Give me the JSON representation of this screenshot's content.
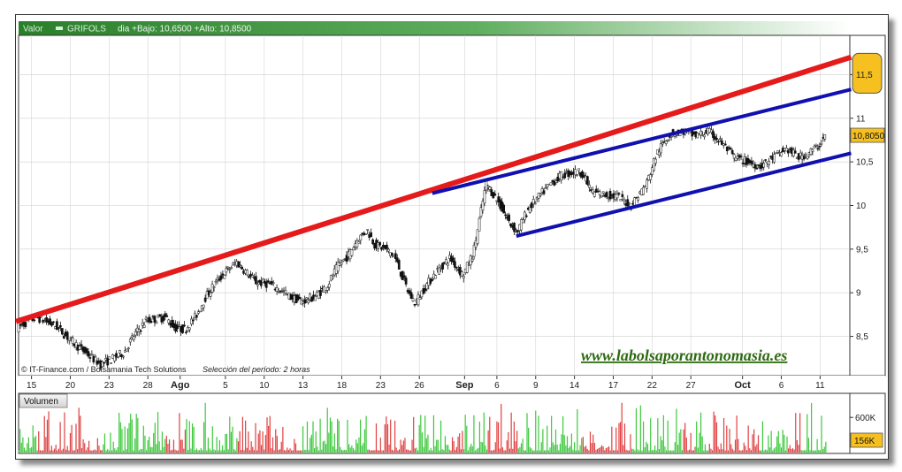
{
  "header": {
    "valor_label": "Valor",
    "ticker": "GRIFOLS",
    "quote_text": "dia +Bajo: 10,6500 +Alto: 10,8500"
  },
  "footer": {
    "source": "© IT-Finance.com / Bolsamania Tech Solutions",
    "period": "Selección del período: 2 horas",
    "website": "www.labolsaporantonomasia.es"
  },
  "volume_panel": {
    "label": "Volumen"
  },
  "last_price_badge": "10,8050",
  "volume_badge": "156K",
  "colors": {
    "header_bar": "#2e7a2e",
    "trendline_red": "#e51a1a",
    "channel_blue": "#1010b0",
    "candle_up": "#ffffff",
    "candle_down": "#111111",
    "vol_up": "#3cc83c",
    "vol_down": "#e04040",
    "badge_fill": "#f5c020",
    "website_text": "#2e6a10"
  },
  "chart_data": [
    {
      "type": "candlestick",
      "ylim": [
        8.05,
        11.95
      ],
      "y_ticks": [
        8.5,
        9,
        9.5,
        10,
        10.5,
        11,
        11.5
      ],
      "y_tick_labels": [
        "8,5",
        "9",
        "9,5",
        "10",
        "10,5",
        "11",
        "11,5"
      ],
      "x_ticks": [
        {
          "label": "15",
          "pos": 1.0,
          "month": false
        },
        {
          "label": "20",
          "pos": 4.0,
          "month": false
        },
        {
          "label": "23",
          "pos": 7.0,
          "month": false
        },
        {
          "label": "28",
          "pos": 10.0,
          "month": false
        },
        {
          "label": "Ago",
          "pos": 12.5,
          "month": true
        },
        {
          "label": "5",
          "pos": 16.0,
          "month": false
        },
        {
          "label": "10",
          "pos": 19.0,
          "month": false
        },
        {
          "label": "13",
          "pos": 22.0,
          "month": false
        },
        {
          "label": "18",
          "pos": 25.0,
          "month": false
        },
        {
          "label": "23",
          "pos": 28.0,
          "month": false
        },
        {
          "label": "26",
          "pos": 31.0,
          "month": false
        },
        {
          "label": "Sep",
          "pos": 34.5,
          "month": true
        },
        {
          "label": "6",
          "pos": 37.0,
          "month": false
        },
        {
          "label": "9",
          "pos": 40.0,
          "month": false
        },
        {
          "label": "14",
          "pos": 43.0,
          "month": false
        },
        {
          "label": "17",
          "pos": 46.0,
          "month": false
        },
        {
          "label": "22",
          "pos": 49.0,
          "month": false
        },
        {
          "label": "27",
          "pos": 52.0,
          "month": false
        },
        {
          "label": "Oct",
          "pos": 56.0,
          "month": true
        },
        {
          "label": "6",
          "pos": 59.0,
          "month": false
        },
        {
          "label": "11",
          "pos": 62.0,
          "month": false
        }
      ],
      "x_range": [
        0,
        64.3
      ],
      "price_path": [
        [
          0,
          8.6
        ],
        [
          1.5,
          8.72
        ],
        [
          3,
          8.62
        ],
        [
          4.2,
          8.45
        ],
        [
          5.6,
          8.28
        ],
        [
          6.5,
          8.18
        ],
        [
          7.6,
          8.26
        ],
        [
          8.3,
          8.32
        ],
        [
          9,
          8.5
        ],
        [
          10,
          8.68
        ],
        [
          11.5,
          8.72
        ],
        [
          12.2,
          8.6
        ],
        [
          13,
          8.58
        ],
        [
          13.8,
          8.72
        ],
        [
          14.6,
          8.95
        ],
        [
          15.3,
          9.1
        ],
        [
          16,
          9.22
        ],
        [
          17,
          9.35
        ],
        [
          18.5,
          9.12
        ],
        [
          19.5,
          9.1
        ],
        [
          20.5,
          9.02
        ],
        [
          21.2,
          8.95
        ],
        [
          22,
          8.9
        ],
        [
          23,
          8.95
        ],
        [
          24,
          9.08
        ],
        [
          24.8,
          9.3
        ],
        [
          25.6,
          9.42
        ],
        [
          26.3,
          9.6
        ],
        [
          27.1,
          9.72
        ],
        [
          27.7,
          9.55
        ],
        [
          28.5,
          9.5
        ],
        [
          29.2,
          9.42
        ],
        [
          30.3,
          9.0
        ],
        [
          30.8,
          8.88
        ],
        [
          31.5,
          9.05
        ],
        [
          32.5,
          9.25
        ],
        [
          33.5,
          9.4
        ],
        [
          34.5,
          9.2
        ],
        [
          35.3,
          9.45
        ],
        [
          35.8,
          9.85
        ],
        [
          36.3,
          10.25
        ],
        [
          37.2,
          10.05
        ],
        [
          38.1,
          9.8
        ],
        [
          38.7,
          9.7
        ],
        [
          39.5,
          9.95
        ],
        [
          40.5,
          10.12
        ],
        [
          41.3,
          10.25
        ],
        [
          42.2,
          10.35
        ],
        [
          43,
          10.38
        ],
        [
          43.7,
          10.38
        ],
        [
          44.5,
          10.15
        ],
        [
          45.6,
          10.12
        ],
        [
          46.5,
          10.1
        ],
        [
          47.5,
          10.0
        ],
        [
          48.7,
          10.25
        ],
        [
          49.5,
          10.6
        ],
        [
          50.5,
          10.82
        ],
        [
          51.5,
          10.85
        ],
        [
          52.5,
          10.8
        ],
        [
          53.5,
          10.85
        ],
        [
          54.5,
          10.72
        ],
        [
          55.5,
          10.55
        ],
        [
          56.5,
          10.5
        ],
        [
          57.5,
          10.45
        ],
        [
          58.5,
          10.55
        ],
        [
          59.5,
          10.65
        ],
        [
          60.5,
          10.55
        ],
        [
          61.2,
          10.6
        ],
        [
          62,
          10.68
        ],
        [
          62.5,
          10.8
        ]
      ],
      "trendlines": [
        {
          "color": "red",
          "x1": -0.2,
          "y1": 8.67,
          "x2": 64.4,
          "y2": 11.7
        },
        {
          "color": "blue",
          "x1": 32.0,
          "y1": 10.14,
          "x2": 64.4,
          "y2": 11.33
        },
        {
          "color": "blue",
          "x1": 38.5,
          "y1": 9.65,
          "x2": 64.4,
          "y2": 10.6
        }
      ],
      "last_price": 10.805,
      "highlighted_tick": "11,5"
    },
    {
      "type": "bar",
      "name": "Volumen",
      "ylim": [
        0,
        1000
      ],
      "y_tick_label": "600K",
      "y_tick_value": 600,
      "last_value_label": "156K",
      "bars_per_session": 9
    }
  ]
}
